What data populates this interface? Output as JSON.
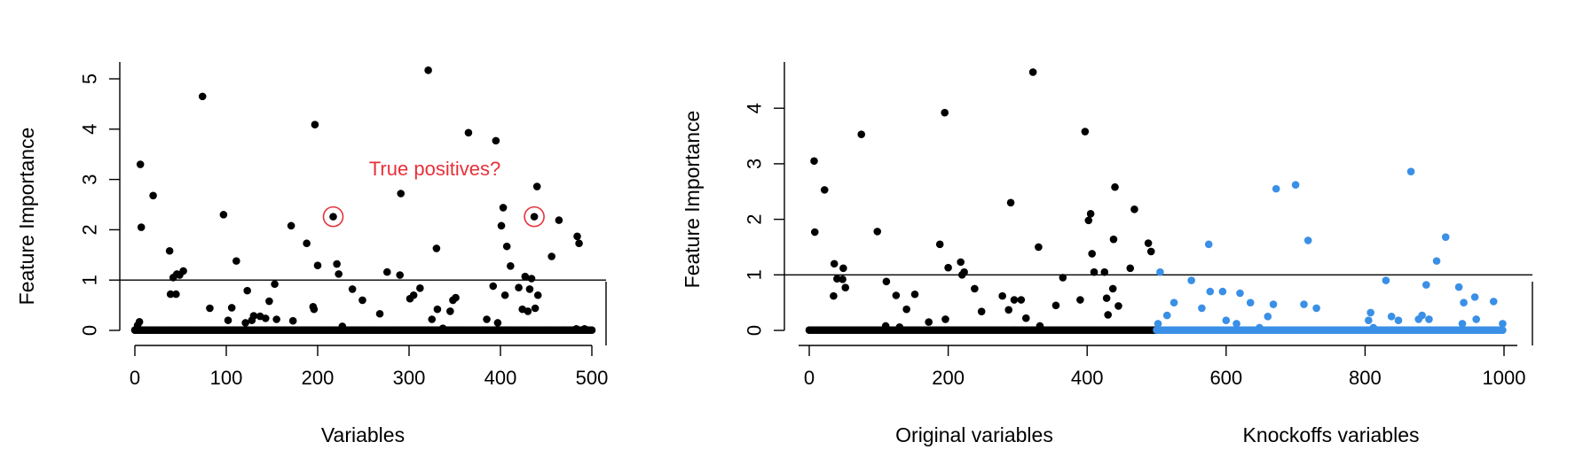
{
  "chart_data": [
    {
      "type": "scatter",
      "ylabel": "Feature Importance",
      "xlabel": "Variables",
      "xlim": [
        0,
        500
      ],
      "ylim": [
        0,
        5.2
      ],
      "xticks": [
        0,
        100,
        200,
        300,
        400,
        500
      ],
      "yticks": [
        0,
        1,
        2,
        3,
        4,
        5
      ],
      "threshold": 1,
      "grid": false,
      "annotation": {
        "text": "True positives?",
        "color": "#e8303a",
        "circled_points": [
          [
            217,
            2.26
          ],
          [
            437,
            2.26
          ]
        ]
      },
      "series": [
        {
          "color": "#000000",
          "points": [
            [
              2,
              0.03
            ],
            [
              3,
              0.1
            ],
            [
              5,
              0.17
            ],
            [
              6,
              3.3
            ],
            [
              7,
              2.05
            ],
            [
              20,
              2.68
            ],
            [
              38,
              1.58
            ],
            [
              39,
              0.72
            ],
            [
              42,
              1.05
            ],
            [
              45,
              0.72
            ],
            [
              46,
              1.12
            ],
            [
              49,
              1.1
            ],
            [
              53,
              1.18
            ],
            [
              74,
              4.65
            ],
            [
              82,
              0.44
            ],
            [
              97,
              2.3
            ],
            [
              102,
              0.2
            ],
            [
              106,
              0.45
            ],
            [
              111,
              1.38
            ],
            [
              121,
              0.15
            ],
            [
              123,
              0.79
            ],
            [
              128,
              0.2
            ],
            [
              130,
              0.29
            ],
            [
              137,
              0.28
            ],
            [
              143,
              0.24
            ],
            [
              147,
              0.58
            ],
            [
              153,
              0.92
            ],
            [
              155,
              0.22
            ],
            [
              171,
              2.08
            ],
            [
              173,
              0.19
            ],
            [
              188,
              1.73
            ],
            [
              195,
              0.47
            ],
            [
              196,
              0.42
            ],
            [
              197,
              4.09
            ],
            [
              200,
              1.29
            ],
            [
              217,
              2.26
            ],
            [
              221,
              1.32
            ],
            [
              223,
              1.12
            ],
            [
              227,
              0.08
            ],
            [
              238,
              0.82
            ],
            [
              249,
              0.6
            ],
            [
              268,
              0.33
            ],
            [
              276,
              1.16
            ],
            [
              290,
              1.1
            ],
            [
              291,
              2.72
            ],
            [
              301,
              0.63
            ],
            [
              305,
              0.7
            ],
            [
              312,
              0.84
            ],
            [
              321,
              5.17
            ],
            [
              325,
              0.22
            ],
            [
              330,
              1.63
            ],
            [
              331,
              0.42
            ],
            [
              337,
              0.04
            ],
            [
              345,
              0.38
            ],
            [
              348,
              0.6
            ],
            [
              351,
              0.65
            ],
            [
              365,
              3.93
            ],
            [
              385,
              0.22
            ],
            [
              392,
              0.88
            ],
            [
              395,
              3.77
            ],
            [
              397,
              0.15
            ],
            [
              401,
              2.08
            ],
            [
              403,
              2.44
            ],
            [
              405,
              0.7
            ],
            [
              407,
              1.67
            ],
            [
              411,
              1.28
            ],
            [
              420,
              0.85
            ],
            [
              424,
              0.42
            ],
            [
              427,
              1.07
            ],
            [
              430,
              0.38
            ],
            [
              432,
              0.82
            ],
            [
              434,
              1.03
            ],
            [
              437,
              2.26
            ],
            [
              438,
              0.44
            ],
            [
              440,
              2.86
            ],
            [
              441,
              0.7
            ],
            [
              456,
              1.47
            ],
            [
              464,
              2.19
            ],
            [
              483,
              0.03
            ],
            [
              484,
              1.87
            ],
            [
              486,
              1.73
            ],
            [
              492,
              0.03
            ]
          ]
        }
      ]
    },
    {
      "type": "scatter",
      "ylabel": "Feature Importance",
      "group_labels": [
        "Original variables",
        "Knockoffs variables"
      ],
      "xlim": [
        0,
        1000
      ],
      "ylim": [
        0,
        4.6
      ],
      "xticks": [
        0,
        200,
        400,
        600,
        800,
        1000
      ],
      "yticks": [
        0,
        1,
        2,
        3,
        4
      ],
      "threshold": 1,
      "grid": false,
      "series": [
        {
          "group": "Original variables",
          "color": "#000000",
          "points": [
            [
              7,
              3.05
            ],
            [
              8,
              1.77
            ],
            [
              22,
              2.53
            ],
            [
              35,
              0.62
            ],
            [
              36,
              1.2
            ],
            [
              40,
              0.93
            ],
            [
              48,
              0.92
            ],
            [
              49,
              1.12
            ],
            [
              52,
              0.77
            ],
            [
              75,
              3.53
            ],
            [
              98,
              1.78
            ],
            [
              110,
              0.08
            ],
            [
              111,
              0.88
            ],
            [
              125,
              0.63
            ],
            [
              130,
              0.06
            ],
            [
              140,
              0.38
            ],
            [
              152,
              0.65
            ],
            [
              172,
              0.15
            ],
            [
              188,
              1.55
            ],
            [
              195,
              3.92
            ],
            [
              196,
              0.2
            ],
            [
              200,
              1.13
            ],
            [
              218,
              1.23
            ],
            [
              220,
              1.0
            ],
            [
              223,
              1.05
            ],
            [
              238,
              0.75
            ],
            [
              248,
              0.34
            ],
            [
              278,
              0.62
            ],
            [
              287,
              0.37
            ],
            [
              290,
              2.3
            ],
            [
              295,
              0.55
            ],
            [
              305,
              0.55
            ],
            [
              312,
              0.22
            ],
            [
              322,
              4.65
            ],
            [
              330,
              1.5
            ],
            [
              332,
              0.08
            ],
            [
              355,
              0.45
            ],
            [
              365,
              0.95
            ],
            [
              390,
              0.55
            ],
            [
              397,
              3.58
            ],
            [
              402,
              1.98
            ],
            [
              405,
              2.1
            ],
            [
              407,
              1.38
            ],
            [
              410,
              1.05
            ],
            [
              425,
              1.05
            ],
            [
              428,
              0.58
            ],
            [
              430,
              0.28
            ],
            [
              437,
              0.75
            ],
            [
              438,
              1.64
            ],
            [
              440,
              2.58
            ],
            [
              445,
              0.44
            ],
            [
              462,
              1.12
            ],
            [
              468,
              2.18
            ],
            [
              488,
              1.57
            ],
            [
              492,
              1.42
            ]
          ]
        },
        {
          "group": "Knockoffs variables",
          "color": "#3a8fe6",
          "points": [
            [
              502,
              0.12
            ],
            [
              505,
              1.05
            ],
            [
              515,
              0.27
            ],
            [
              525,
              0.5
            ],
            [
              550,
              0.9
            ],
            [
              565,
              0.4
            ],
            [
              575,
              1.55
            ],
            [
              577,
              0.7
            ],
            [
              595,
              0.7
            ],
            [
              600,
              0.18
            ],
            [
              615,
              0.12
            ],
            [
              620,
              0.67
            ],
            [
              635,
              0.5
            ],
            [
              648,
              0.05
            ],
            [
              660,
              0.25
            ],
            [
              668,
              0.47
            ],
            [
              672,
              2.55
            ],
            [
              700,
              2.62
            ],
            [
              712,
              0.47
            ],
            [
              718,
              1.62
            ],
            [
              730,
              0.4
            ],
            [
              805,
              0.18
            ],
            [
              808,
              0.32
            ],
            [
              812,
              0.05
            ],
            [
              830,
              0.9
            ],
            [
              838,
              0.25
            ],
            [
              848,
              0.18
            ],
            [
              866,
              2.86
            ],
            [
              877,
              0.2
            ],
            [
              882,
              0.27
            ],
            [
              888,
              0.82
            ],
            [
              892,
              0.2
            ],
            [
              903,
              1.25
            ],
            [
              916,
              1.68
            ],
            [
              935,
              0.78
            ],
            [
              940,
              0.12
            ],
            [
              942,
              0.5
            ],
            [
              958,
              0.6
            ],
            [
              960,
              0.2
            ],
            [
              985,
              0.52
            ],
            [
              998,
              0.12
            ]
          ]
        }
      ]
    }
  ]
}
